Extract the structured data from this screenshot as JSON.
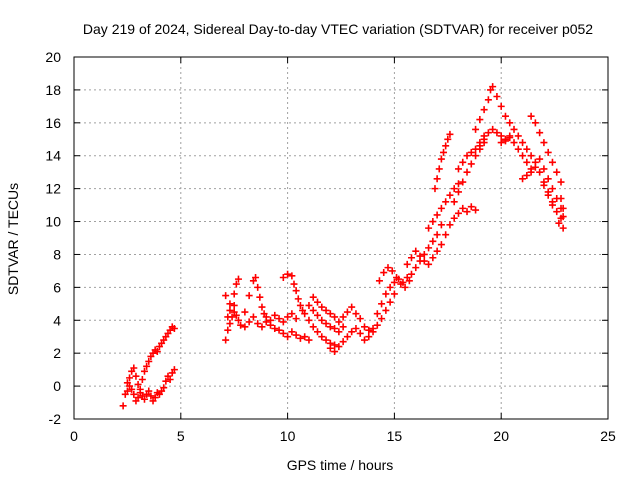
{
  "chart_data": {
    "type": "scatter",
    "title": "Day 219 of 2024, Sidereal Day-to-day VTEC variation (SDTVAR) for receiver p052",
    "xlabel": "GPS time / hours",
    "ylabel": "SDTVAR / TECUs",
    "xlim": [
      0,
      25
    ],
    "ylim": [
      -2,
      20
    ],
    "x_ticks": [
      "0",
      "5",
      "10",
      "15",
      "20",
      "25"
    ],
    "y_ticks": [
      "-2",
      "0",
      "2",
      "4",
      "6",
      "8",
      "10",
      "12",
      "14",
      "16",
      "18",
      "20"
    ],
    "grid": true,
    "legend": "none",
    "marker": "+",
    "color": "#ff0000",
    "series": [
      {
        "values": [
          [
            2.3,
            -1.2
          ],
          [
            2.4,
            -0.5
          ],
          [
            2.5,
            0.2
          ],
          [
            2.6,
            0.5
          ],
          [
            2.7,
            0.9
          ],
          [
            2.8,
            1.1
          ],
          [
            2.9,
            0.6
          ],
          [
            3.0,
            0.1
          ],
          [
            3.1,
            -0.2
          ],
          [
            3.2,
            0.4
          ],
          [
            3.3,
            0.9
          ],
          [
            3.4,
            1.2
          ],
          [
            3.5,
            1.5
          ],
          [
            3.6,
            1.8
          ],
          [
            3.7,
            2.0
          ],
          [
            3.8,
            2.2
          ],
          [
            3.9,
            2.1
          ],
          [
            4.0,
            2.4
          ],
          [
            4.1,
            2.6
          ],
          [
            4.2,
            2.8
          ],
          [
            4.3,
            3.0
          ],
          [
            4.4,
            3.2
          ],
          [
            4.5,
            3.4
          ],
          [
            4.6,
            3.6
          ],
          [
            4.7,
            3.5
          ],
          [
            4.7,
            1.0
          ],
          [
            4.6,
            0.8
          ],
          [
            4.5,
            0.4
          ],
          [
            4.4,
            0.6
          ],
          [
            4.3,
            0.3
          ],
          [
            4.2,
            -0.1
          ],
          [
            4.1,
            -0.3
          ],
          [
            4.0,
            -0.5
          ],
          [
            3.9,
            -0.4
          ],
          [
            3.8,
            -0.7
          ],
          [
            3.7,
            -0.9
          ],
          [
            3.6,
            -0.6
          ],
          [
            3.5,
            -0.3
          ],
          [
            3.4,
            -0.5
          ],
          [
            3.3,
            -0.8
          ],
          [
            3.2,
            -0.6
          ],
          [
            3.1,
            -0.4
          ],
          [
            3.0,
            -0.7
          ],
          [
            2.9,
            -0.9
          ],
          [
            2.8,
            -0.5
          ],
          [
            2.7,
            -0.2
          ],
          [
            2.6,
            0.0
          ],
          [
            2.5,
            -0.3
          ],
          [
            7.1,
            2.8
          ],
          [
            7.2,
            3.4
          ],
          [
            7.3,
            3.8
          ],
          [
            7.4,
            4.2
          ],
          [
            7.5,
            4.5
          ],
          [
            7.6,
            4.3
          ],
          [
            7.7,
            4.0
          ],
          [
            7.8,
            3.7
          ],
          [
            7.1,
            5.5
          ],
          [
            7.3,
            5.0
          ],
          [
            7.5,
            5.6
          ],
          [
            7.6,
            6.2
          ],
          [
            7.7,
            6.5
          ],
          [
            7.5,
            4.9
          ],
          [
            7.3,
            4.6
          ],
          [
            7.2,
            4.2
          ],
          [
            8.0,
            4.5
          ],
          [
            8.2,
            5.5
          ],
          [
            8.4,
            6.4
          ],
          [
            8.5,
            6.6
          ],
          [
            8.6,
            6.0
          ],
          [
            8.7,
            5.4
          ],
          [
            8.8,
            4.8
          ],
          [
            8.9,
            4.4
          ],
          [
            9.0,
            4.2
          ],
          [
            9.2,
            4.0
          ],
          [
            9.4,
            4.3
          ],
          [
            9.6,
            4.1
          ],
          [
            9.8,
            3.9
          ],
          [
            10.0,
            4.2
          ],
          [
            10.2,
            4.4
          ],
          [
            10.4,
            4.1
          ],
          [
            8.0,
            3.6
          ],
          [
            8.2,
            3.9
          ],
          [
            8.4,
            4.2
          ],
          [
            8.6,
            3.8
          ],
          [
            8.8,
            3.6
          ],
          [
            9.0,
            3.9
          ],
          [
            9.2,
            3.7
          ],
          [
            9.4,
            3.5
          ],
          [
            9.6,
            3.4
          ],
          [
            9.8,
            3.2
          ],
          [
            10.0,
            3.0
          ],
          [
            10.2,
            3.3
          ],
          [
            10.4,
            3.1
          ],
          [
            10.6,
            2.9
          ],
          [
            10.8,
            3.0
          ],
          [
            11.0,
            2.8
          ],
          [
            9.8,
            6.6
          ],
          [
            10.0,
            6.8
          ],
          [
            10.2,
            6.7
          ],
          [
            10.3,
            6.2
          ],
          [
            10.4,
            5.8
          ],
          [
            10.5,
            5.3
          ],
          [
            10.6,
            4.9
          ],
          [
            10.7,
            4.6
          ],
          [
            10.8,
            4.4
          ],
          [
            11.0,
            4.0
          ],
          [
            11.2,
            3.6
          ],
          [
            11.4,
            3.3
          ],
          [
            11.6,
            3.0
          ],
          [
            11.8,
            2.8
          ],
          [
            12.0,
            2.6
          ],
          [
            12.2,
            2.5
          ],
          [
            11.0,
            4.9
          ],
          [
            11.2,
            4.6
          ],
          [
            11.4,
            4.3
          ],
          [
            11.6,
            4.0
          ],
          [
            11.8,
            3.8
          ],
          [
            12.0,
            3.6
          ],
          [
            12.2,
            3.5
          ],
          [
            12.4,
            3.3
          ],
          [
            11.2,
            5.4
          ],
          [
            11.4,
            5.1
          ],
          [
            11.6,
            4.8
          ],
          [
            11.8,
            4.6
          ],
          [
            12.0,
            4.4
          ],
          [
            12.2,
            4.2
          ],
          [
            12.4,
            3.9
          ],
          [
            12.6,
            3.6
          ],
          [
            12.0,
            2.3
          ],
          [
            12.2,
            2.1
          ],
          [
            12.4,
            2.4
          ],
          [
            12.6,
            2.7
          ],
          [
            12.8,
            3.0
          ],
          [
            13.0,
            3.3
          ],
          [
            13.2,
            3.5
          ],
          [
            13.4,
            3.2
          ],
          [
            12.6,
            4.2
          ],
          [
            12.8,
            4.5
          ],
          [
            13.0,
            4.8
          ],
          [
            13.2,
            4.4
          ],
          [
            13.4,
            4.1
          ],
          [
            13.6,
            3.6
          ],
          [
            13.8,
            3.4
          ],
          [
            14.0,
            3.5
          ],
          [
            13.6,
            2.8
          ],
          [
            13.8,
            3.0
          ],
          [
            14.0,
            3.3
          ],
          [
            14.2,
            3.7
          ],
          [
            14.4,
            4.1
          ],
          [
            14.6,
            4.6
          ],
          [
            14.8,
            5.1
          ],
          [
            15.0,
            5.6
          ],
          [
            14.2,
            4.4
          ],
          [
            14.4,
            5.0
          ],
          [
            14.6,
            5.6
          ],
          [
            14.8,
            6.0
          ],
          [
            15.0,
            6.3
          ],
          [
            15.2,
            6.5
          ],
          [
            15.4,
            6.3
          ],
          [
            15.6,
            6.6
          ],
          [
            14.3,
            6.4
          ],
          [
            14.5,
            6.9
          ],
          [
            14.7,
            7.2
          ],
          [
            14.9,
            7.0
          ],
          [
            15.1,
            6.6
          ],
          [
            15.3,
            6.2
          ],
          [
            15.5,
            6.0
          ],
          [
            15.7,
            6.4
          ],
          [
            15.8,
            6.8
          ],
          [
            16.0,
            7.2
          ],
          [
            16.2,
            7.6
          ],
          [
            16.4,
            8.0
          ],
          [
            16.6,
            8.4
          ],
          [
            16.8,
            8.8
          ],
          [
            17.0,
            9.2
          ],
          [
            17.2,
            9.8
          ],
          [
            15.6,
            7.4
          ],
          [
            15.8,
            7.8
          ],
          [
            16.0,
            8.2
          ],
          [
            16.2,
            7.9
          ],
          [
            16.4,
            7.6
          ],
          [
            16.6,
            7.4
          ],
          [
            16.8,
            7.8
          ],
          [
            17.0,
            8.2
          ],
          [
            16.6,
            9.6
          ],
          [
            16.8,
            10.0
          ],
          [
            17.0,
            10.4
          ],
          [
            17.2,
            10.8
          ],
          [
            17.4,
            11.2
          ],
          [
            17.6,
            11.6
          ],
          [
            17.8,
            12.0
          ],
          [
            18.0,
            12.3
          ],
          [
            16.9,
            12.0
          ],
          [
            17.0,
            12.6
          ],
          [
            17.1,
            13.2
          ],
          [
            17.2,
            13.8
          ],
          [
            17.3,
            14.2
          ],
          [
            17.4,
            14.6
          ],
          [
            17.5,
            15.0
          ],
          [
            17.6,
            15.3
          ],
          [
            17.2,
            8.6
          ],
          [
            17.4,
            9.2
          ],
          [
            17.6,
            9.8
          ],
          [
            17.8,
            10.2
          ],
          [
            18.0,
            10.5
          ],
          [
            18.2,
            10.8
          ],
          [
            18.4,
            10.6
          ],
          [
            18.6,
            10.9
          ],
          [
            18.8,
            10.7
          ],
          [
            18.0,
            13.2
          ],
          [
            18.2,
            13.6
          ],
          [
            18.4,
            14.0
          ],
          [
            18.6,
            14.2
          ],
          [
            18.8,
            14.4
          ],
          [
            19.0,
            14.6
          ],
          [
            19.2,
            15.0
          ],
          [
            17.8,
            11.2
          ],
          [
            18.0,
            11.8
          ],
          [
            18.2,
            12.4
          ],
          [
            18.4,
            13.0
          ],
          [
            18.6,
            13.5
          ],
          [
            18.8,
            14.0
          ],
          [
            19.0,
            14.4
          ],
          [
            19.2,
            14.8
          ],
          [
            18.8,
            15.6
          ],
          [
            19.0,
            16.2
          ],
          [
            19.2,
            16.8
          ],
          [
            19.4,
            17.4
          ],
          [
            19.5,
            18.0
          ],
          [
            19.6,
            18.2
          ],
          [
            19.8,
            17.6
          ],
          [
            20.0,
            17.0
          ],
          [
            19.0,
            14.8
          ],
          [
            19.2,
            15.2
          ],
          [
            19.4,
            15.4
          ],
          [
            19.6,
            15.6
          ],
          [
            19.8,
            15.4
          ],
          [
            20.0,
            15.2
          ],
          [
            20.2,
            15.0
          ],
          [
            20.4,
            15.2
          ],
          [
            20.0,
            14.8
          ],
          [
            20.2,
            14.9
          ],
          [
            20.4,
            15.1
          ],
          [
            20.6,
            14.8
          ],
          [
            20.8,
            14.4
          ],
          [
            21.0,
            14.0
          ],
          [
            21.2,
            13.6
          ],
          [
            21.4,
            13.2
          ],
          [
            20.2,
            16.4
          ],
          [
            20.4,
            16.0
          ],
          [
            20.6,
            15.6
          ],
          [
            20.8,
            15.2
          ],
          [
            21.0,
            14.8
          ],
          [
            21.2,
            14.4
          ],
          [
            21.4,
            14.0
          ],
          [
            21.6,
            13.6
          ],
          [
            21.0,
            12.6
          ],
          [
            21.2,
            12.8
          ],
          [
            21.4,
            13.0
          ],
          [
            21.6,
            13.3
          ],
          [
            21.8,
            13.0
          ],
          [
            22.0,
            12.4
          ],
          [
            22.2,
            11.8
          ],
          [
            22.4,
            11.2
          ],
          [
            21.4,
            16.4
          ],
          [
            21.6,
            16.0
          ],
          [
            21.8,
            15.4
          ],
          [
            22.0,
            14.8
          ],
          [
            22.2,
            14.2
          ],
          [
            22.4,
            13.6
          ],
          [
            22.6,
            13.0
          ],
          [
            22.8,
            12.4
          ],
          [
            22.0,
            12.2
          ],
          [
            22.2,
            11.6
          ],
          [
            22.4,
            11.0
          ],
          [
            22.6,
            10.6
          ],
          [
            22.8,
            10.2
          ],
          [
            22.9,
            9.6
          ],
          [
            22.9,
            10.8
          ],
          [
            22.8,
            11.4
          ],
          [
            21.8,
            13.8
          ],
          [
            22.0,
            13.2
          ],
          [
            22.2,
            12.6
          ],
          [
            22.4,
            12.0
          ],
          [
            22.6,
            11.4
          ],
          [
            22.8,
            10.8
          ],
          [
            22.9,
            10.3
          ],
          [
            22.7,
            9.9
          ]
        ]
      }
    ]
  }
}
